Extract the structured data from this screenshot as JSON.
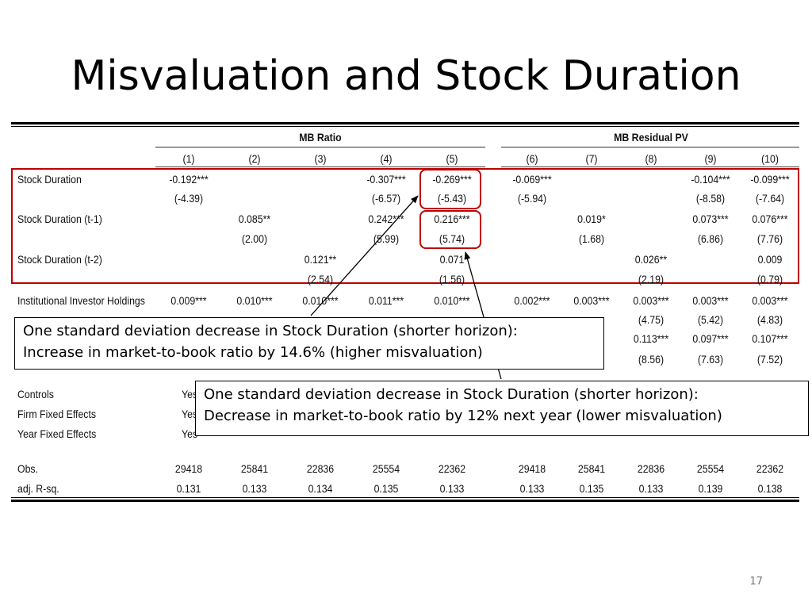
{
  "slide": {
    "title": "Misvaluation and Stock Duration",
    "page_number": "17"
  },
  "table": {
    "group_headers": [
      "MB Ratio",
      "MB Residual PV"
    ],
    "column_headers": [
      "(1)",
      "(2)",
      "(3)",
      "(4)",
      "(5)",
      "(6)",
      "(7)",
      "(8)",
      "(9)",
      "(10)"
    ],
    "rows": [
      {
        "label": "Stock Duration",
        "coef": [
          "-0.192***",
          "",
          "",
          "-0.307***",
          "-0.269***",
          "-0.069***",
          "",
          "",
          "-0.104***",
          "-0.099***"
        ],
        "tstat": [
          "(-4.39)",
          "",
          "",
          "(-6.57)",
          "(-5.43)",
          "(-5.94)",
          "",
          "",
          "(-8.58)",
          "(-7.64)"
        ]
      },
      {
        "label": "Stock Duration (t-1)",
        "coef": [
          "",
          "0.085**",
          "",
          "0.242***",
          "0.216***",
          "",
          "0.019*",
          "",
          "0.073***",
          "0.076***"
        ],
        "tstat": [
          "",
          "(2.00)",
          "",
          "(5.99)",
          "(5.74)",
          "",
          "(1.68)",
          "",
          "(6.86)",
          "(7.76)"
        ]
      },
      {
        "label": "Stock Duration (t-2)",
        "coef": [
          "",
          "",
          "0.121**",
          "",
          "0.071",
          "",
          "",
          "0.026**",
          "",
          "0.009"
        ],
        "tstat": [
          "",
          "",
          "(2.54)",
          "",
          "(1.56)",
          "",
          "",
          "(2.19)",
          "",
          "(0.79)"
        ]
      },
      {
        "label": "Institutional Investor Holdings",
        "coef": [
          "0.009***",
          "0.010***",
          "0.010***",
          "0.011***",
          "0.010***",
          "0.002***",
          "0.003***",
          "0.003***",
          "0.003***",
          "0.003***"
        ],
        "tstat": [
          "",
          "",
          "",
          "",
          "",
          "",
          "",
          "(4.75)",
          "(5.42)",
          "(4.83)"
        ]
      },
      {
        "label": "",
        "coef": [
          "",
          "",
          "",
          "",
          "",
          "",
          "**",
          "0.113***",
          "0.097***",
          "0.107***"
        ],
        "tstat": [
          "",
          "",
          "",
          "",
          "",
          "",
          "",
          "(8.56)",
          "(7.63)",
          "(7.52)"
        ]
      }
    ],
    "fixed_effects": [
      {
        "label": "Controls",
        "first": "Yes"
      },
      {
        "label": "Firm Fixed Effects",
        "first": "Yes"
      },
      {
        "label": "Year Fixed Effects",
        "first": "Yes"
      }
    ],
    "obs": {
      "label": "Obs.",
      "values": [
        "29418",
        "25841",
        "22836",
        "25554",
        "22362",
        "29418",
        "25841",
        "22836",
        "25554",
        "22362"
      ]
    },
    "r2": {
      "label": "adj. R-sq.",
      "values": [
        "0.131",
        "0.133",
        "0.134",
        "0.135",
        "0.133",
        "0.133",
        "0.135",
        "0.133",
        "0.139",
        "0.138"
      ]
    }
  },
  "callouts": {
    "first": {
      "line1": "One standard deviation decrease in Stock Duration (shorter horizon):",
      "line2": "Increase in market-to-book ratio by 14.6% (higher misvaluation)"
    },
    "second": {
      "line1": "One standard deviation decrease in Stock Duration (shorter horizon):",
      "line2": "Decrease in market-to-book ratio by 12% next year (lower misvaluation)"
    }
  },
  "colors": {
    "highlight": "#c00000",
    "text": "#000000",
    "page_number": "#777777"
  }
}
